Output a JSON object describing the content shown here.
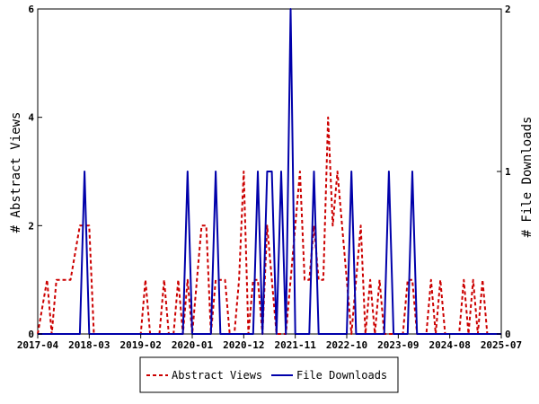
{
  "chart_data": {
    "type": "line",
    "ylabel_left": "# Abstract Views",
    "ylabel_right": "# File Downloads",
    "xlim": [
      "2017-04",
      "2025-07"
    ],
    "x_ticks": [
      "2017-04",
      "2018-03",
      "2019-02",
      "2020-01",
      "2020-12",
      "2021-11",
      "2022-10",
      "2023-09",
      "2024-08",
      "2025-07"
    ],
    "y_left": {
      "lim": [
        0,
        6
      ],
      "ticks": [
        0,
        2,
        4,
        6
      ]
    },
    "y_right": {
      "lim": [
        0,
        2
      ],
      "ticks": [
        0,
        1,
        2
      ]
    },
    "grid": false,
    "legend_position": "bottom",
    "series": [
      {
        "name": "Abstract Views",
        "axis": "left",
        "color": "#cc0000",
        "style": "dashed",
        "points": [
          [
            "2017-04",
            0
          ],
          [
            "2017-05",
            0.5
          ],
          [
            "2017-06",
            1
          ],
          [
            "2017-07",
            0
          ],
          [
            "2017-08",
            1
          ],
          [
            "2017-09",
            1
          ],
          [
            "2017-10",
            1
          ],
          [
            "2017-11",
            1
          ],
          [
            "2017-12",
            1.5
          ],
          [
            "2018-01",
            2
          ],
          [
            "2018-02",
            2
          ],
          [
            "2018-03",
            2
          ],
          [
            "2018-04",
            0
          ],
          [
            "2018-05",
            0
          ],
          [
            "2018-08",
            0
          ],
          [
            "2018-11",
            0
          ],
          [
            "2019-01",
            0
          ],
          [
            "2019-02",
            0
          ],
          [
            "2019-03",
            1
          ],
          [
            "2019-04",
            0
          ],
          [
            "2019-05",
            0
          ],
          [
            "2019-06",
            0
          ],
          [
            "2019-07",
            1
          ],
          [
            "2019-08",
            0
          ],
          [
            "2019-09",
            0
          ],
          [
            "2019-10",
            1
          ],
          [
            "2019-11",
            0
          ],
          [
            "2019-12",
            1
          ],
          [
            "2020-01",
            0
          ],
          [
            "2020-02",
            1
          ],
          [
            "2020-03",
            2
          ],
          [
            "2020-04",
            2
          ],
          [
            "2020-05",
            0
          ],
          [
            "2020-06",
            1
          ],
          [
            "2020-07",
            1
          ],
          [
            "2020-08",
            1
          ],
          [
            "2020-09",
            0
          ],
          [
            "2020-10",
            0
          ],
          [
            "2020-11",
            1
          ],
          [
            "2020-12",
            3
          ],
          [
            "2021-01",
            0
          ],
          [
            "2021-02",
            1
          ],
          [
            "2021-03",
            1
          ],
          [
            "2021-04",
            0
          ],
          [
            "2021-05",
            2
          ],
          [
            "2021-06",
            1
          ],
          [
            "2021-07",
            0
          ],
          [
            "2021-08",
            0
          ],
          [
            "2021-09",
            0
          ],
          [
            "2021-10",
            1
          ],
          [
            "2021-11",
            2
          ],
          [
            "2021-12",
            3
          ],
          [
            "2022-01",
            1
          ],
          [
            "2022-02",
            1
          ],
          [
            "2022-03",
            2
          ],
          [
            "2022-04",
            1
          ],
          [
            "2022-05",
            1
          ],
          [
            "2022-06",
            4
          ],
          [
            "2022-07",
            2
          ],
          [
            "2022-08",
            3
          ],
          [
            "2022-09",
            2
          ],
          [
            "2022-10",
            1
          ],
          [
            "2022-11",
            0
          ],
          [
            "2022-12",
            1
          ],
          [
            "2023-01",
            2
          ],
          [
            "2023-02",
            0
          ],
          [
            "2023-03",
            1
          ],
          [
            "2023-04",
            0
          ],
          [
            "2023-05",
            1
          ],
          [
            "2023-06",
            0
          ],
          [
            "2023-07",
            0
          ],
          [
            "2023-08",
            0
          ],
          [
            "2023-09",
            0
          ],
          [
            "2023-10",
            0
          ],
          [
            "2023-11",
            1
          ],
          [
            "2023-12",
            1
          ],
          [
            "2024-01",
            0
          ],
          [
            "2024-02",
            0
          ],
          [
            "2024-03",
            0
          ],
          [
            "2024-04",
            1
          ],
          [
            "2024-05",
            0
          ],
          [
            "2024-06",
            1
          ],
          [
            "2024-07",
            0
          ],
          [
            "2024-08",
            0
          ],
          [
            "2024-09",
            0
          ],
          [
            "2024-10",
            0
          ],
          [
            "2024-11",
            1
          ],
          [
            "2024-12",
            0
          ],
          [
            "2025-01",
            1
          ],
          [
            "2025-02",
            0
          ],
          [
            "2025-03",
            1
          ],
          [
            "2025-04",
            0
          ],
          [
            "2025-05",
            0
          ],
          [
            "2025-07",
            0
          ]
        ]
      },
      {
        "name": "File Downloads",
        "axis": "right",
        "color": "#0000aa",
        "style": "solid",
        "points": [
          [
            "2017-04",
            0
          ],
          [
            "2017-10",
            0
          ],
          [
            "2018-01",
            0
          ],
          [
            "2018-02",
            1
          ],
          [
            "2018-03",
            0
          ],
          [
            "2018-06",
            0
          ],
          [
            "2019-06",
            0
          ],
          [
            "2019-11",
            0
          ],
          [
            "2019-12",
            1
          ],
          [
            "2020-01",
            0
          ],
          [
            "2020-05",
            0
          ],
          [
            "2020-06",
            1
          ],
          [
            "2020-07",
            0
          ],
          [
            "2021-01",
            0
          ],
          [
            "2021-02",
            0
          ],
          [
            "2021-03",
            1
          ],
          [
            "2021-04",
            0
          ],
          [
            "2021-05",
            1
          ],
          [
            "2021-06",
            1
          ],
          [
            "2021-07",
            0
          ],
          [
            "2021-08",
            1
          ],
          [
            "2021-09",
            0
          ],
          [
            "2021-10",
            2
          ],
          [
            "2021-11",
            0
          ],
          [
            "2022-02",
            0
          ],
          [
            "2022-03",
            1
          ],
          [
            "2022-04",
            0
          ],
          [
            "2022-10",
            0
          ],
          [
            "2022-11",
            1
          ],
          [
            "2022-12",
            0
          ],
          [
            "2023-06",
            0
          ],
          [
            "2023-07",
            1
          ],
          [
            "2023-08",
            0
          ],
          [
            "2023-11",
            0
          ],
          [
            "2023-12",
            1
          ],
          [
            "2024-01",
            0
          ],
          [
            "2025-07",
            0
          ]
        ]
      }
    ]
  }
}
